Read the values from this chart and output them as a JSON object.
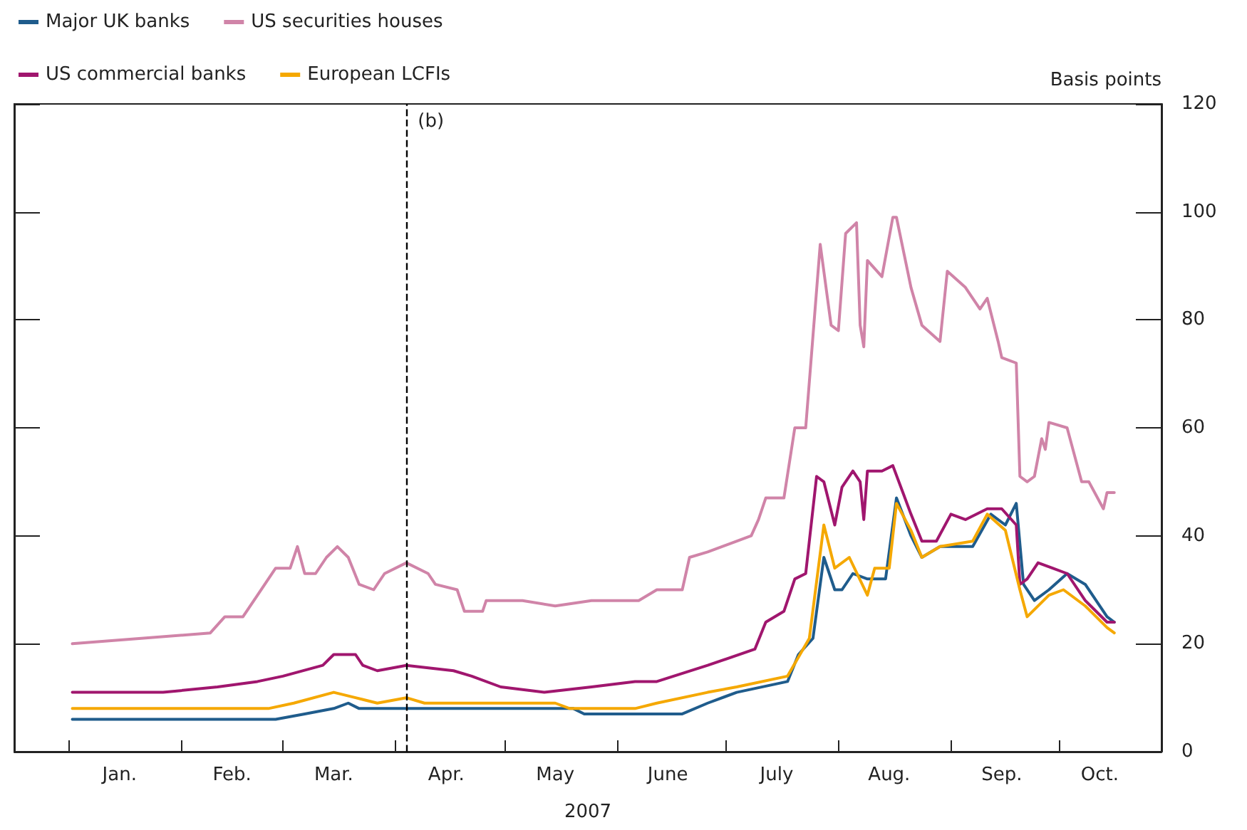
{
  "chart_data": {
    "type": "line",
    "xlabel": "2007",
    "ylabel": "Basis points",
    "xlim": [
      "2006-12-17",
      "2007-10-29"
    ],
    "ylim": [
      0,
      120
    ],
    "yticks": [
      0,
      20,
      40,
      60,
      80,
      100,
      120
    ],
    "xticks": [
      {
        "value": "2007-01-01",
        "label": null
      },
      {
        "value": "2007-02-01",
        "label": null
      },
      {
        "value": "2007-03-01",
        "label": null
      },
      {
        "value": "2007-04-01",
        "label": null
      },
      {
        "value": "2007-05-01",
        "label": null
      },
      {
        "value": "2007-06-01",
        "label": null
      },
      {
        "value": "2007-07-01",
        "label": null
      },
      {
        "value": "2007-08-01",
        "label": null
      },
      {
        "value": "2007-09-01",
        "label": null
      },
      {
        "value": "2007-10-01",
        "label": null
      },
      {
        "value": "2007-01-15",
        "label": "Jan."
      },
      {
        "value": "2007-02-15",
        "label": "Feb."
      },
      {
        "value": "2007-03-15",
        "label": "Mar."
      },
      {
        "value": "2007-04-15",
        "label": "Apr."
      },
      {
        "value": "2007-05-15",
        "label": "May"
      },
      {
        "value": "2007-06-15",
        "label": "June"
      },
      {
        "value": "2007-07-15",
        "label": "July"
      },
      {
        "value": "2007-08-15",
        "label": "Aug."
      },
      {
        "value": "2007-09-15",
        "label": "Sep."
      },
      {
        "value": "2007-10-12",
        "label": "Oct."
      }
    ],
    "grid": false,
    "legend": "top left",
    "marker": "none",
    "line_style": "solid",
    "ref_lines": [
      {
        "axis": "x",
        "value": "2007-04-04",
        "label": "(b)",
        "color": "#000000",
        "line_style": "dashed"
      }
    ],
    "series": [
      {
        "name": "Major UK banks",
        "color": "#1f5c8c",
        "x": [
          "2007-01-02",
          "2007-02-27",
          "2007-03-07",
          "2007-03-15",
          "2007-03-19",
          "2007-03-22",
          "2007-03-27",
          "2007-05-20",
          "2007-05-23",
          "2007-06-19",
          "2007-06-26",
          "2007-07-04",
          "2007-07-18",
          "2007-07-21",
          "2007-07-25",
          "2007-07-28",
          "2007-07-31",
          "2007-08-02",
          "2007-08-05",
          "2007-08-09",
          "2007-08-14",
          "2007-08-17",
          "2007-08-21",
          "2007-08-24",
          "2007-08-29",
          "2007-09-07",
          "2007-09-12",
          "2007-09-16",
          "2007-09-19",
          "2007-09-21",
          "2007-09-24",
          "2007-09-28",
          "2007-10-03",
          "2007-10-08",
          "2007-10-14",
          "2007-10-16"
        ],
        "values": [
          6,
          6,
          7,
          8,
          9,
          8,
          8,
          8,
          7,
          7,
          9,
          11,
          13,
          18,
          21,
          36,
          30,
          30,
          33,
          32,
          32,
          47,
          40,
          36,
          38,
          38,
          44,
          42,
          46,
          31,
          28,
          30,
          33,
          31,
          25,
          24
        ]
      },
      {
        "name": "US securities houses",
        "color": "#d084a8",
        "x": [
          "2007-01-02",
          "2007-01-21",
          "2007-02-09",
          "2007-02-13",
          "2007-02-18",
          "2007-02-22",
          "2007-02-27",
          "2007-03-03",
          "2007-03-05",
          "2007-03-07",
          "2007-03-10",
          "2007-03-13",
          "2007-03-16",
          "2007-03-19",
          "2007-03-22",
          "2007-03-26",
          "2007-03-29",
          "2007-04-04",
          "2007-04-10",
          "2007-04-12",
          "2007-04-18",
          "2007-04-20",
          "2007-04-25",
          "2007-04-26",
          "2007-05-06",
          "2007-05-15",
          "2007-05-25",
          "2007-05-30",
          "2007-06-07",
          "2007-06-12",
          "2007-06-19",
          "2007-06-21",
          "2007-06-26",
          "2007-07-08",
          "2007-07-10",
          "2007-07-12",
          "2007-07-17",
          "2007-07-20",
          "2007-07-23",
          "2007-07-25",
          "2007-07-27",
          "2007-07-30",
          "2007-08-01",
          "2007-08-03",
          "2007-08-06",
          "2007-08-07",
          "2007-08-08",
          "2007-08-09",
          "2007-08-13",
          "2007-08-16",
          "2007-08-17",
          "2007-08-21",
          "2007-08-24",
          "2007-08-29",
          "2007-08-31",
          "2007-09-05",
          "2007-09-09",
          "2007-09-11",
          "2007-09-14",
          "2007-09-15",
          "2007-09-19",
          "2007-09-20",
          "2007-09-22",
          "2007-09-24",
          "2007-09-26",
          "2007-09-27",
          "2007-09-28",
          "2007-10-03",
          "2007-10-07",
          "2007-10-09",
          "2007-10-13",
          "2007-10-14",
          "2007-10-16"
        ],
        "values": [
          20,
          21,
          22,
          25,
          25,
          29,
          34,
          34,
          38,
          33,
          33,
          36,
          38,
          36,
          31,
          30,
          33,
          35,
          33,
          31,
          30,
          26,
          26,
          28,
          28,
          27,
          28,
          28,
          28,
          30,
          30,
          36,
          37,
          40,
          43,
          47,
          47,
          60,
          60,
          77,
          94,
          79,
          78,
          96,
          98,
          79,
          75,
          91,
          88,
          99,
          99,
          86,
          79,
          76,
          89,
          86,
          82,
          84,
          76,
          73,
          72,
          51,
          50,
          51,
          58,
          56,
          61,
          60,
          50,
          50,
          45,
          48,
          48
        ]
      },
      {
        "name": "US commercial banks",
        "color": "#a0166e",
        "x": [
          "2007-01-02",
          "2007-01-14",
          "2007-01-27",
          "2007-02-11",
          "2007-02-22",
          "2007-03-01",
          "2007-03-12",
          "2007-03-15",
          "2007-03-21",
          "2007-03-23",
          "2007-03-27",
          "2007-04-04",
          "2007-04-17",
          "2007-04-22",
          "2007-04-30",
          "2007-05-12",
          "2007-05-25",
          "2007-06-06",
          "2007-06-12",
          "2007-06-26",
          "2007-07-09",
          "2007-07-12",
          "2007-07-17",
          "2007-07-20",
          "2007-07-23",
          "2007-07-26",
          "2007-07-28",
          "2007-07-31",
          "2007-08-02",
          "2007-08-05",
          "2007-08-07",
          "2007-08-08",
          "2007-08-09",
          "2007-08-13",
          "2007-08-16",
          "2007-08-21",
          "2007-08-24",
          "2007-08-28",
          "2007-09-01",
          "2007-09-05",
          "2007-09-11",
          "2007-09-15",
          "2007-09-19",
          "2007-09-20",
          "2007-09-22",
          "2007-09-25",
          "2007-09-29",
          "2007-10-03",
          "2007-10-08",
          "2007-10-14",
          "2007-10-16"
        ],
        "values": [
          11,
          11,
          11,
          12,
          13,
          14,
          16,
          18,
          18,
          16,
          15,
          16,
          15,
          14,
          12,
          11,
          12,
          13,
          13,
          16,
          19,
          24,
          26,
          32,
          33,
          51,
          50,
          42,
          49,
          52,
          50,
          43,
          52,
          52,
          53,
          44,
          39,
          39,
          44,
          43,
          45,
          45,
          42,
          31,
          32,
          35,
          34,
          33,
          28,
          24,
          24
        ]
      },
      {
        "name": "European LCFIs",
        "color": "#f5a800",
        "x": [
          "2007-01-02",
          "2007-02-25",
          "2007-03-04",
          "2007-03-15",
          "2007-03-21",
          "2007-03-27",
          "2007-04-04",
          "2007-04-09",
          "2007-05-15",
          "2007-05-19",
          "2007-06-06",
          "2007-06-12",
          "2007-06-26",
          "2007-07-04",
          "2007-07-18",
          "2007-07-24",
          "2007-07-28",
          "2007-07-31",
          "2007-08-04",
          "2007-08-09",
          "2007-08-11",
          "2007-08-15",
          "2007-08-17",
          "2007-08-21",
          "2007-08-24",
          "2007-08-29",
          "2007-09-07",
          "2007-09-11",
          "2007-09-16",
          "2007-09-20",
          "2007-09-22",
          "2007-09-28",
          "2007-10-02",
          "2007-10-08",
          "2007-10-14",
          "2007-10-16"
        ],
        "values": [
          8,
          8,
          9,
          11,
          10,
          9,
          10,
          9,
          9,
          8,
          8,
          9,
          11,
          12,
          14,
          21,
          42,
          34,
          36,
          29,
          34,
          34,
          46,
          41,
          36,
          38,
          39,
          44,
          41,
          30,
          25,
          29,
          30,
          27,
          23,
          22
        ]
      }
    ]
  }
}
